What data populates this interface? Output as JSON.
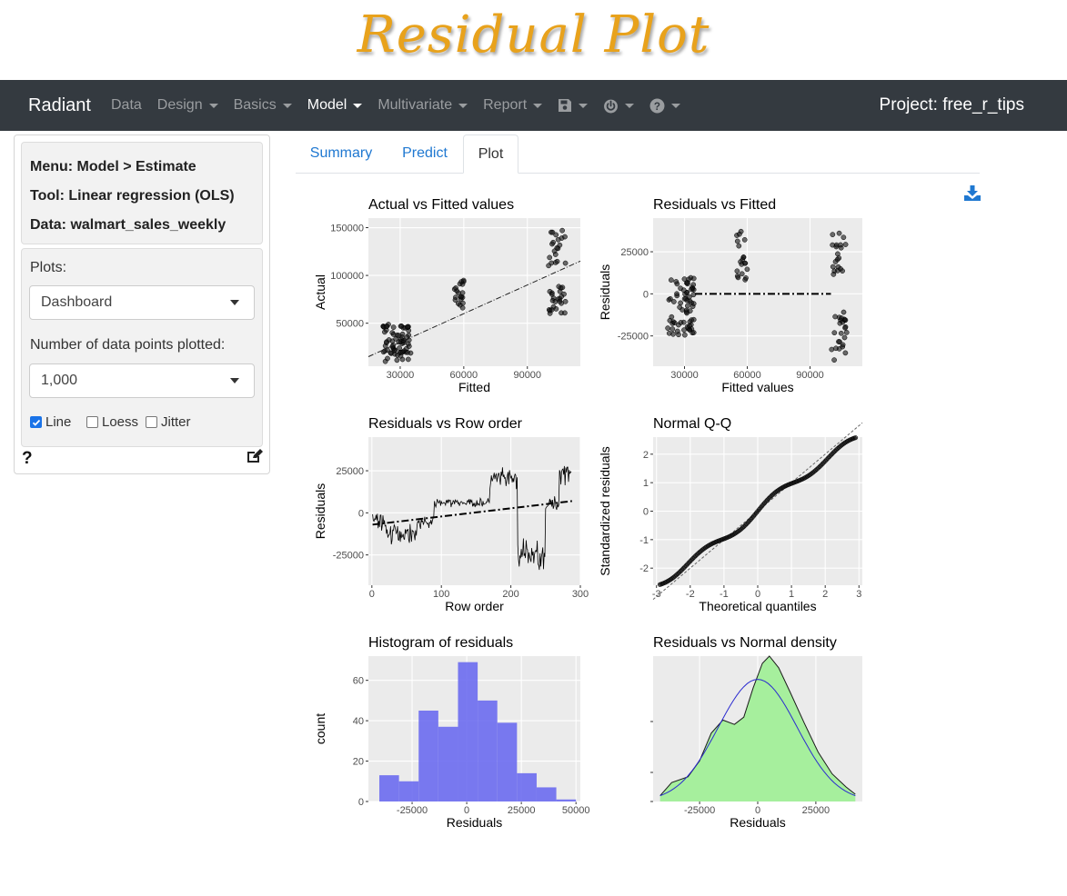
{
  "banner": {
    "title": "Residual Plot",
    "color": "#e8a21c"
  },
  "navbar": {
    "brand": "Radiant",
    "items": [
      {
        "label": "Data",
        "dropdown": false,
        "active": false
      },
      {
        "label": "Design",
        "dropdown": true,
        "active": false
      },
      {
        "label": "Basics",
        "dropdown": true,
        "active": false
      },
      {
        "label": "Model",
        "dropdown": true,
        "active": true
      },
      {
        "label": "Multivariate",
        "dropdown": true,
        "active": false
      },
      {
        "label": "Report",
        "dropdown": true,
        "active": false
      }
    ],
    "icons": [
      "save-icon",
      "power-icon",
      "help-icon"
    ],
    "project": "Project: free_r_tips"
  },
  "sidebar": {
    "menu": "Menu: Model > Estimate",
    "tool": "Tool: Linear regression (OLS)",
    "data": "Data: walmart_sales_weekly",
    "plots_label": "Plots:",
    "plots_value": "Dashboard",
    "npoints_label": "Number of data points plotted:",
    "npoints_value": "1,000",
    "checkboxes": [
      {
        "label": "Line",
        "checked": true
      },
      {
        "label": "Loess",
        "checked": false
      },
      {
        "label": "Jitter",
        "checked": false
      }
    ],
    "help": "?"
  },
  "tabs": [
    {
      "label": "Summary",
      "active": false
    },
    {
      "label": "Predict",
      "active": false
    },
    {
      "label": "Plot",
      "active": true
    }
  ],
  "chart_data": [
    {
      "type": "scatter",
      "title": "Actual vs Fitted values",
      "xlabel": "Fitted",
      "ylabel": "Actual",
      "xlim": [
        15000,
        115000
      ],
      "ylim": [
        5000,
        160000
      ],
      "xticks": [
        "30000",
        "60000",
        "90000"
      ],
      "yticks": [
        "50000",
        "100000",
        "150000"
      ],
      "clusters": [
        {
          "x": [
            22000,
            35000
          ],
          "y": [
            10000,
            50000
          ],
          "n": 70
        },
        {
          "x": [
            55000,
            60000
          ],
          "y": [
            65000,
            95000
          ],
          "n": 20
        },
        {
          "x": [
            100000,
            108000
          ],
          "y": [
            60000,
            90000
          ],
          "n": 25
        },
        {
          "x": [
            100000,
            108000
          ],
          "y": [
            110000,
            148000
          ],
          "n": 20
        }
      ],
      "fit_line": {
        "x": [
          15000,
          115000
        ],
        "y": [
          15000,
          115000
        ]
      }
    },
    {
      "type": "scatter",
      "title": "Residuals vs Fitted",
      "xlabel": "Fitted values",
      "ylabel": "Residuals",
      "xlim": [
        15000,
        115000
      ],
      "ylim": [
        -43000,
        45000
      ],
      "xticks": [
        "30000",
        "60000",
        "90000"
      ],
      "yticks": [
        "-25000",
        "0",
        "25000"
      ],
      "clusters": [
        {
          "x": [
            22000,
            35000
          ],
          "y": [
            -25000,
            10000
          ],
          "n": 70
        },
        {
          "x": [
            55000,
            60000
          ],
          "y": [
            8000,
            40000
          ],
          "n": 20
        },
        {
          "x": [
            100000,
            108000
          ],
          "y": [
            -40000,
            -10000
          ],
          "n": 25
        },
        {
          "x": [
            100000,
            108000
          ],
          "y": [
            10000,
            40000
          ],
          "n": 20
        }
      ],
      "ref_line": {
        "x": [
          35000,
          100000
        ],
        "y": 0
      }
    },
    {
      "type": "line",
      "title": "Residuals vs Row order",
      "xlabel": "Row order",
      "ylabel": "Residuals",
      "xlim": [
        -5,
        300
      ],
      "ylim": [
        -43000,
        45000
      ],
      "xticks": [
        "0",
        "100",
        "200",
        "300"
      ],
      "yticks": [
        "-25000",
        "0",
        "25000"
      ],
      "segments": [
        {
          "x0": 1,
          "x1": 20,
          "mean": -5000,
          "noise": 8000
        },
        {
          "x0": 20,
          "x1": 65,
          "mean": -12000,
          "noise": 8000
        },
        {
          "x0": 65,
          "x1": 90,
          "mean": -6000,
          "noise": 6000
        },
        {
          "x0": 90,
          "x1": 170,
          "mean": 6000,
          "noise": 3500
        },
        {
          "x0": 170,
          "x1": 210,
          "mean": 20000,
          "noise": 9000
        },
        {
          "x0": 210,
          "x1": 250,
          "mean": -25000,
          "noise": 12000
        },
        {
          "x0": 250,
          "x1": 270,
          "mean": 5000,
          "noise": 6000
        },
        {
          "x0": 270,
          "x1": 288,
          "mean": 25000,
          "noise": 10000
        }
      ],
      "trend": {
        "x": [
          1,
          288
        ],
        "y": [
          -7000,
          7000
        ]
      }
    },
    {
      "type": "scatter",
      "title": "Normal Q-Q",
      "xlabel": "Theoretical quantiles",
      "ylabel": "Standardized residuals",
      "xlim": [
        -3.1,
        3.1
      ],
      "ylim": [
        -2.6,
        2.6
      ],
      "xticks": [
        "-3",
        "-2",
        "-1",
        "0",
        "1",
        "2",
        "3"
      ],
      "yticks": [
        "-2",
        "-1",
        "0",
        "1",
        "2"
      ],
      "n": 143,
      "ref_line": {
        "x": [
          -3.1,
          3.1
        ],
        "y": [
          -3.1,
          3.1
        ]
      }
    },
    {
      "type": "bar",
      "title": "Histogram of residuals",
      "xlabel": "Residuals",
      "ylabel": "count",
      "xlim": [
        -45000,
        52000
      ],
      "ylim": [
        0,
        72
      ],
      "xticks": [
        "-25000",
        "0",
        "25000",
        "50000"
      ],
      "yticks": [
        "0",
        "20",
        "40",
        "60"
      ],
      "bins": [
        {
          "x0": -40000,
          "x1": -31000,
          "count": 13
        },
        {
          "x0": -31000,
          "x1": -22000,
          "count": 10
        },
        {
          "x0": -22000,
          "x1": -13000,
          "count": 45
        },
        {
          "x0": -13000,
          "x1": -4000,
          "count": 37
        },
        {
          "x0": -4000,
          "x1": 5000,
          "count": 69
        },
        {
          "x0": 5000,
          "x1": 14000,
          "count": 50
        },
        {
          "x0": 14000,
          "x1": 23000,
          "count": 39
        },
        {
          "x0": 23000,
          "x1": 32000,
          "count": 14
        },
        {
          "x0": 32000,
          "x1": 41000,
          "count": 7
        },
        {
          "x0": 41000,
          "x1": 50000,
          "count": 1
        }
      ],
      "color": "#6b6bf0"
    },
    {
      "type": "area",
      "title": "Residuals vs Normal density",
      "xlabel": "Residuals",
      "ylabel": "",
      "xlim": [
        -45000,
        45000
      ],
      "ylim": [
        0,
        1
      ],
      "xticks": [
        "-25000",
        "0",
        "25000"
      ],
      "density": [
        [
          -42000,
          0.04
        ],
        [
          -37000,
          0.13
        ],
        [
          -30000,
          0.17
        ],
        [
          -25000,
          0.28
        ],
        [
          -20000,
          0.47
        ],
        [
          -15000,
          0.56
        ],
        [
          -10000,
          0.53
        ],
        [
          -6000,
          0.58
        ],
        [
          -2000,
          0.78
        ],
        [
          2000,
          0.95
        ],
        [
          5000,
          1.0
        ],
        [
          9000,
          0.92
        ],
        [
          14000,
          0.75
        ],
        [
          20000,
          0.54
        ],
        [
          26000,
          0.34
        ],
        [
          32000,
          0.19
        ],
        [
          38000,
          0.1
        ],
        [
          42000,
          0.05
        ]
      ],
      "normal": {
        "mean": 0,
        "sd": 17000
      },
      "fill": "#a6ef9d",
      "line": "#1a1a1a",
      "normal_color": "#2a2ad0"
    }
  ]
}
